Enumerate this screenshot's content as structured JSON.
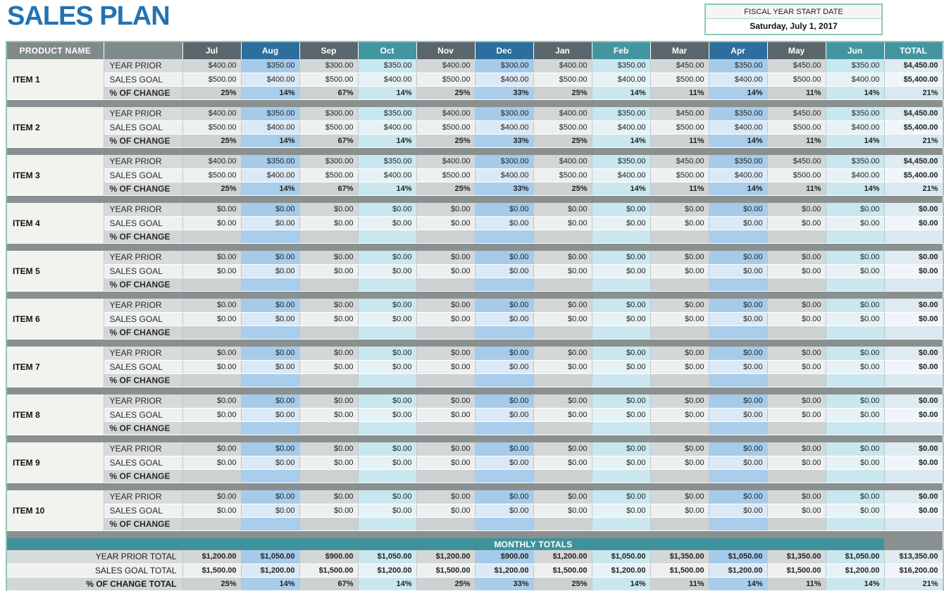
{
  "title": "SALES PLAN",
  "fiscal": {
    "label": "FISCAL YEAR START DATE",
    "date": "Saturday, July 1, 2017"
  },
  "colors": {
    "title_blue": "#2173b4",
    "accent_border_teal": "#8bc8b5",
    "header_gray": "#5a666c",
    "header_blue": "#2d6e9e",
    "header_teal": "#43969f",
    "product_header_gray": "#7f8a8b",
    "band_teal": "#3f929c",
    "separator_gray": "#8a8f90",
    "cell_blue": "#a6cbea",
    "cell_teal": "#c8e7ee",
    "cell_gray": "#d4d7d7"
  },
  "table": {
    "product_header": "PRODUCT NAME",
    "months": [
      "Jul",
      "Aug",
      "Sep",
      "Oct",
      "Nov",
      "Dec",
      "Jan",
      "Feb",
      "Mar",
      "Apr",
      "May",
      "Jun"
    ],
    "month_styles": [
      "gray",
      "blue",
      "gray",
      "teal",
      "gray",
      "blue",
      "gray",
      "teal",
      "gray",
      "blue",
      "gray",
      "teal"
    ],
    "total_header": "TOTAL",
    "row_labels": [
      "YEAR PRIOR",
      "SALES GOAL",
      "% OF CHANGE"
    ],
    "items": [
      {
        "name": "ITEM 1",
        "year_prior": [
          "$400.00",
          "$350.00",
          "$300.00",
          "$350.00",
          "$400.00",
          "$300.00",
          "$400.00",
          "$350.00",
          "$450.00",
          "$350.00",
          "$450.00",
          "$350.00"
        ],
        "year_prior_total": "$4,450.00",
        "sales_goal": [
          "$500.00",
          "$400.00",
          "$500.00",
          "$400.00",
          "$500.00",
          "$400.00",
          "$500.00",
          "$400.00",
          "$500.00",
          "$400.00",
          "$500.00",
          "$400.00"
        ],
        "sales_goal_total": "$5,400.00",
        "pct_change": [
          "25%",
          "14%",
          "67%",
          "14%",
          "25%",
          "33%",
          "25%",
          "14%",
          "11%",
          "14%",
          "11%",
          "14%"
        ],
        "pct_change_total": "21%"
      },
      {
        "name": "ITEM 2",
        "year_prior": [
          "$400.00",
          "$350.00",
          "$300.00",
          "$350.00",
          "$400.00",
          "$300.00",
          "$400.00",
          "$350.00",
          "$450.00",
          "$350.00",
          "$450.00",
          "$350.00"
        ],
        "year_prior_total": "$4,450.00",
        "sales_goal": [
          "$500.00",
          "$400.00",
          "$500.00",
          "$400.00",
          "$500.00",
          "$400.00",
          "$500.00",
          "$400.00",
          "$500.00",
          "$400.00",
          "$500.00",
          "$400.00"
        ],
        "sales_goal_total": "$5,400.00",
        "pct_change": [
          "25%",
          "14%",
          "67%",
          "14%",
          "25%",
          "33%",
          "25%",
          "14%",
          "11%",
          "14%",
          "11%",
          "14%"
        ],
        "pct_change_total": "21%"
      },
      {
        "name": "ITEM 3",
        "year_prior": [
          "$400.00",
          "$350.00",
          "$300.00",
          "$350.00",
          "$400.00",
          "$300.00",
          "$400.00",
          "$350.00",
          "$450.00",
          "$350.00",
          "$450.00",
          "$350.00"
        ],
        "year_prior_total": "$4,450.00",
        "sales_goal": [
          "$500.00",
          "$400.00",
          "$500.00",
          "$400.00",
          "$500.00",
          "$400.00",
          "$500.00",
          "$400.00",
          "$500.00",
          "$400.00",
          "$500.00",
          "$400.00"
        ],
        "sales_goal_total": "$5,400.00",
        "pct_change": [
          "25%",
          "14%",
          "67%",
          "14%",
          "25%",
          "33%",
          "25%",
          "14%",
          "11%",
          "14%",
          "11%",
          "14%"
        ],
        "pct_change_total": "21%"
      },
      {
        "name": "ITEM 4",
        "year_prior": [
          "$0.00",
          "$0.00",
          "$0.00",
          "$0.00",
          "$0.00",
          "$0.00",
          "$0.00",
          "$0.00",
          "$0.00",
          "$0.00",
          "$0.00",
          "$0.00"
        ],
        "year_prior_total": "$0.00",
        "sales_goal": [
          "$0.00",
          "$0.00",
          "$0.00",
          "$0.00",
          "$0.00",
          "$0.00",
          "$0.00",
          "$0.00",
          "$0.00",
          "$0.00",
          "$0.00",
          "$0.00"
        ],
        "sales_goal_total": "$0.00",
        "pct_change": [
          "",
          "",
          "",
          "",
          "",
          "",
          "",
          "",
          "",
          "",
          "",
          ""
        ],
        "pct_change_total": ""
      },
      {
        "name": "ITEM 5",
        "year_prior": [
          "$0.00",
          "$0.00",
          "$0.00",
          "$0.00",
          "$0.00",
          "$0.00",
          "$0.00",
          "$0.00",
          "$0.00",
          "$0.00",
          "$0.00",
          "$0.00"
        ],
        "year_prior_total": "$0.00",
        "sales_goal": [
          "$0.00",
          "$0.00",
          "$0.00",
          "$0.00",
          "$0.00",
          "$0.00",
          "$0.00",
          "$0.00",
          "$0.00",
          "$0.00",
          "$0.00",
          "$0.00"
        ],
        "sales_goal_total": "$0.00",
        "pct_change": [
          "",
          "",
          "",
          "",
          "",
          "",
          "",
          "",
          "",
          "",
          "",
          ""
        ],
        "pct_change_total": ""
      },
      {
        "name": "ITEM 6",
        "year_prior": [
          "$0.00",
          "$0.00",
          "$0.00",
          "$0.00",
          "$0.00",
          "$0.00",
          "$0.00",
          "$0.00",
          "$0.00",
          "$0.00",
          "$0.00",
          "$0.00"
        ],
        "year_prior_total": "$0.00",
        "sales_goal": [
          "$0.00",
          "$0.00",
          "$0.00",
          "$0.00",
          "$0.00",
          "$0.00",
          "$0.00",
          "$0.00",
          "$0.00",
          "$0.00",
          "$0.00",
          "$0.00"
        ],
        "sales_goal_total": "$0.00",
        "pct_change": [
          "",
          "",
          "",
          "",
          "",
          "",
          "",
          "",
          "",
          "",
          "",
          ""
        ],
        "pct_change_total": ""
      },
      {
        "name": "ITEM 7",
        "year_prior": [
          "$0.00",
          "$0.00",
          "$0.00",
          "$0.00",
          "$0.00",
          "$0.00",
          "$0.00",
          "$0.00",
          "$0.00",
          "$0.00",
          "$0.00",
          "$0.00"
        ],
        "year_prior_total": "$0.00",
        "sales_goal": [
          "$0.00",
          "$0.00",
          "$0.00",
          "$0.00",
          "$0.00",
          "$0.00",
          "$0.00",
          "$0.00",
          "$0.00",
          "$0.00",
          "$0.00",
          "$0.00"
        ],
        "sales_goal_total": "$0.00",
        "pct_change": [
          "",
          "",
          "",
          "",
          "",
          "",
          "",
          "",
          "",
          "",
          "",
          ""
        ],
        "pct_change_total": ""
      },
      {
        "name": "ITEM 8",
        "year_prior": [
          "$0.00",
          "$0.00",
          "$0.00",
          "$0.00",
          "$0.00",
          "$0.00",
          "$0.00",
          "$0.00",
          "$0.00",
          "$0.00",
          "$0.00",
          "$0.00"
        ],
        "year_prior_total": "$0.00",
        "sales_goal": [
          "$0.00",
          "$0.00",
          "$0.00",
          "$0.00",
          "$0.00",
          "$0.00",
          "$0.00",
          "$0.00",
          "$0.00",
          "$0.00",
          "$0.00",
          "$0.00"
        ],
        "sales_goal_total": "$0.00",
        "pct_change": [
          "",
          "",
          "",
          "",
          "",
          "",
          "",
          "",
          "",
          "",
          "",
          ""
        ],
        "pct_change_total": ""
      },
      {
        "name": "ITEM 9",
        "year_prior": [
          "$0.00",
          "$0.00",
          "$0.00",
          "$0.00",
          "$0.00",
          "$0.00",
          "$0.00",
          "$0.00",
          "$0.00",
          "$0.00",
          "$0.00",
          "$0.00"
        ],
        "year_prior_total": "$0.00",
        "sales_goal": [
          "$0.00",
          "$0.00",
          "$0.00",
          "$0.00",
          "$0.00",
          "$0.00",
          "$0.00",
          "$0.00",
          "$0.00",
          "$0.00",
          "$0.00",
          "$0.00"
        ],
        "sales_goal_total": "$0.00",
        "pct_change": [
          "",
          "",
          "",
          "",
          "",
          "",
          "",
          "",
          "",
          "",
          "",
          ""
        ],
        "pct_change_total": ""
      },
      {
        "name": "ITEM 10",
        "year_prior": [
          "$0.00",
          "$0.00",
          "$0.00",
          "$0.00",
          "$0.00",
          "$0.00",
          "$0.00",
          "$0.00",
          "$0.00",
          "$0.00",
          "$0.00",
          "$0.00"
        ],
        "year_prior_total": "$0.00",
        "sales_goal": [
          "$0.00",
          "$0.00",
          "$0.00",
          "$0.00",
          "$0.00",
          "$0.00",
          "$0.00",
          "$0.00",
          "$0.00",
          "$0.00",
          "$0.00",
          "$0.00"
        ],
        "sales_goal_total": "$0.00",
        "pct_change": [
          "",
          "",
          "",
          "",
          "",
          "",
          "",
          "",
          "",
          "",
          "",
          ""
        ],
        "pct_change_total": ""
      }
    ]
  },
  "totals": {
    "band_label": "MONTHLY TOTALS",
    "rows": [
      {
        "label": "YEAR PRIOR TOTAL",
        "values": [
          "$1,200.00",
          "$1,050.00",
          "$900.00",
          "$1,050.00",
          "$1,200.00",
          "$900.00",
          "$1,200.00",
          "$1,050.00",
          "$1,350.00",
          "$1,050.00",
          "$1,350.00",
          "$1,050.00"
        ],
        "total": "$13,350.00"
      },
      {
        "label": "SALES GOAL TOTAL",
        "values": [
          "$1,500.00",
          "$1,200.00",
          "$1,500.00",
          "$1,200.00",
          "$1,500.00",
          "$1,200.00",
          "$1,500.00",
          "$1,200.00",
          "$1,500.00",
          "$1,200.00",
          "$1,500.00",
          "$1,200.00"
        ],
        "total": "$16,200.00"
      },
      {
        "label": "% OF CHANGE TOTAL",
        "values": [
          "25%",
          "14%",
          "67%",
          "14%",
          "25%",
          "33%",
          "25%",
          "14%",
          "11%",
          "14%",
          "11%",
          "14%"
        ],
        "total": "21%"
      }
    ]
  }
}
